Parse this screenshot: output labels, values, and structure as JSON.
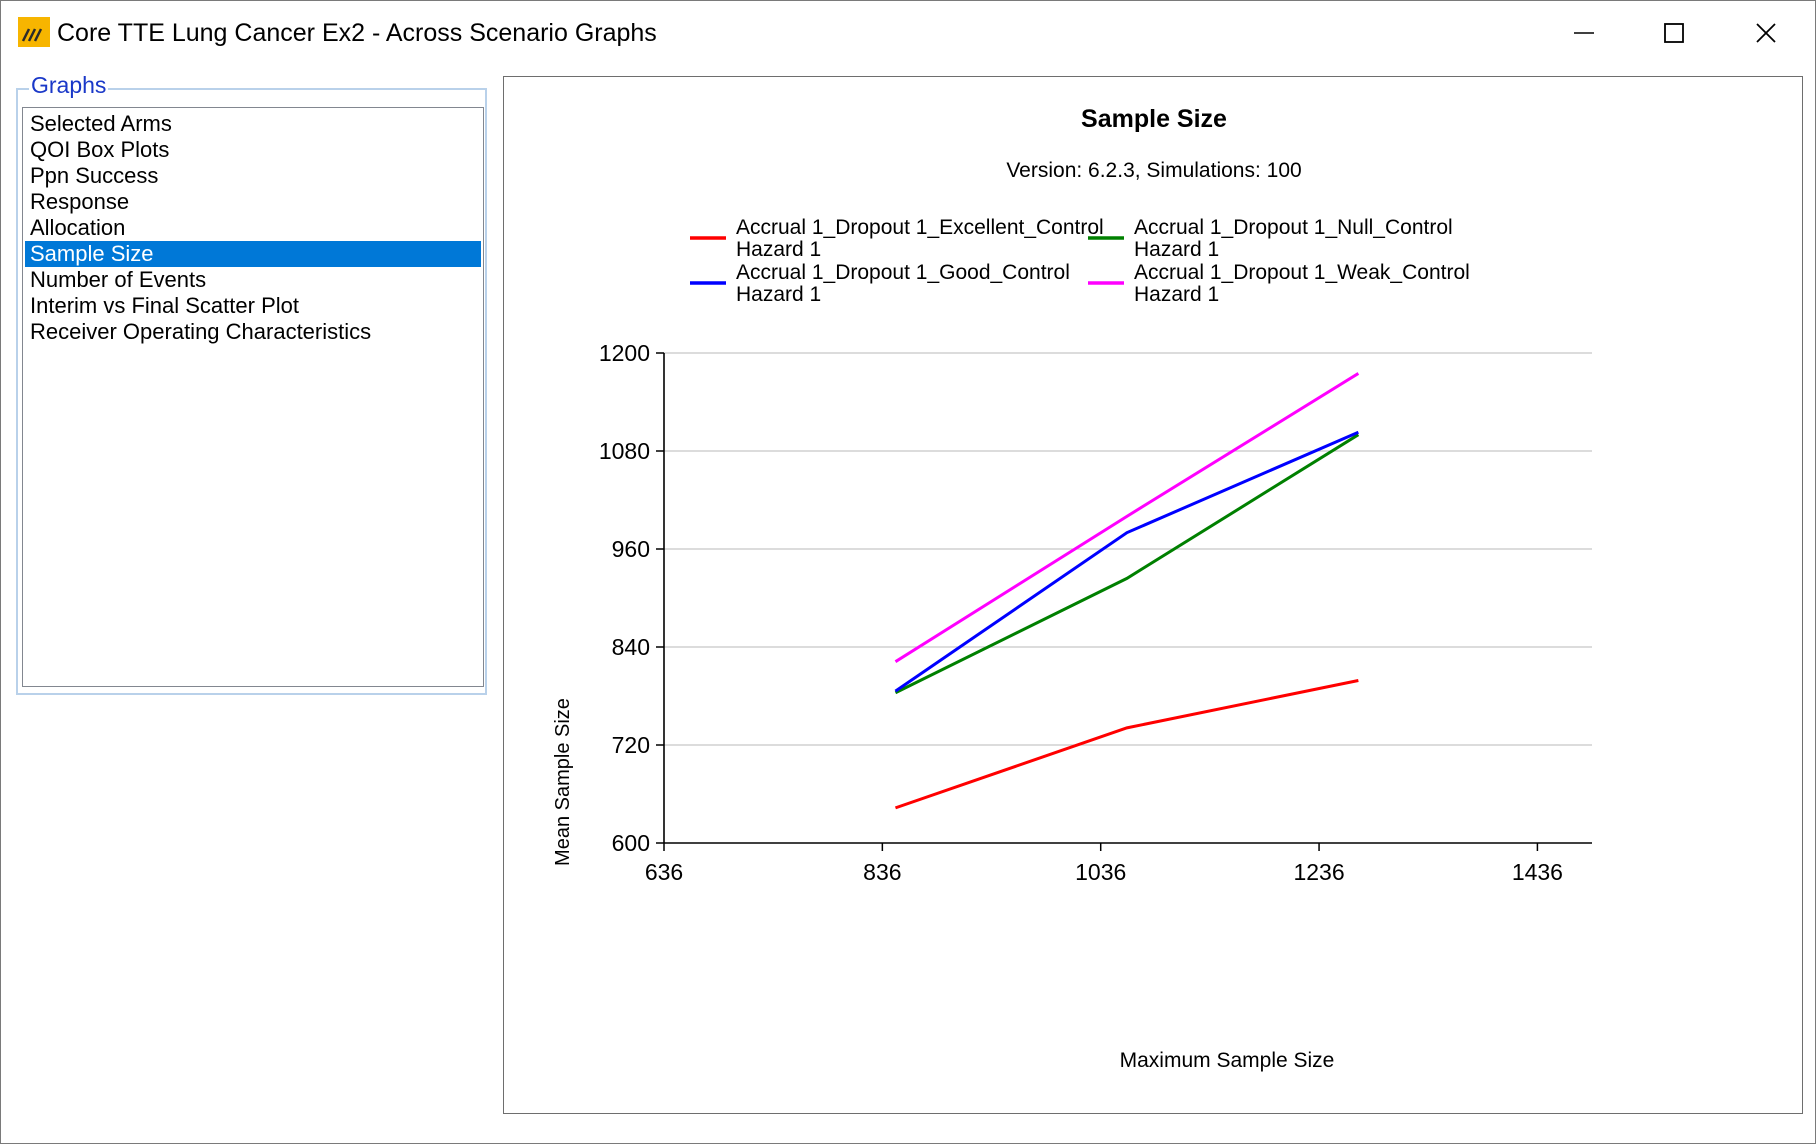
{
  "window": {
    "title": "Core TTE Lung Cancer Ex2 - Across Scenario Graphs",
    "controls": {
      "minimize": "minimize-icon",
      "maximize": "maximize-icon",
      "close": "close-icon"
    }
  },
  "sidebar": {
    "group_label": "Graphs",
    "items": [
      {
        "label": "Selected Arms",
        "selected": false
      },
      {
        "label": "QOI Box Plots",
        "selected": false
      },
      {
        "label": "Ppn Success",
        "selected": false
      },
      {
        "label": "Response",
        "selected": false
      },
      {
        "label": "Allocation",
        "selected": false
      },
      {
        "label": "Sample Size",
        "selected": true
      },
      {
        "label": "Number of Events",
        "selected": false
      },
      {
        "label": "Interim vs Final Scatter Plot",
        "selected": false
      },
      {
        "label": "Receiver Operating Characteristics",
        "selected": false
      }
    ],
    "selected_color": "#0078d7"
  },
  "chart_data": {
    "type": "line",
    "title": "Sample Size",
    "subtitle": "Version: 6.2.3, Simulations: 100",
    "xlabel": "Maximum Sample Size",
    "ylabel": "Mean Sample Size",
    "xlim": [
      636,
      1486
    ],
    "ylim": [
      600,
      1200
    ],
    "xticks": [
      "636",
      "836",
      "1036",
      "1236",
      "1436"
    ],
    "yticks": [
      "600",
      "720",
      "840",
      "960",
      "1080",
      "1200"
    ],
    "grid": true,
    "legend_position": "top",
    "series": [
      {
        "name": "Accrual 1_Dropout 1_Excellent_Control",
        "name_line2": "Hazard 1",
        "color": "#ff0000",
        "x": [
          848,
          1060,
          1272
        ],
        "y": [
          643,
          741,
          799
        ]
      },
      {
        "name": "Accrual 1_Dropout 1_Null_Control",
        "name_line2": "Hazard 1",
        "color": "#008000",
        "x": [
          848,
          1060,
          1272
        ],
        "y": [
          784,
          924,
          1100
        ]
      },
      {
        "name": "Accrual 1_Dropout 1_Good_Control",
        "name_line2": "Hazard 1",
        "color": "#0000ff",
        "x": [
          848,
          1060,
          1272
        ],
        "y": [
          786,
          980,
          1103
        ]
      },
      {
        "name": "Accrual 1_Dropout 1_Weak_Control",
        "name_line2": "Hazard 1",
        "color": "#ff00ff",
        "x": [
          848,
          1060,
          1272
        ],
        "y": [
          822,
          1000,
          1175
        ]
      }
    ]
  }
}
